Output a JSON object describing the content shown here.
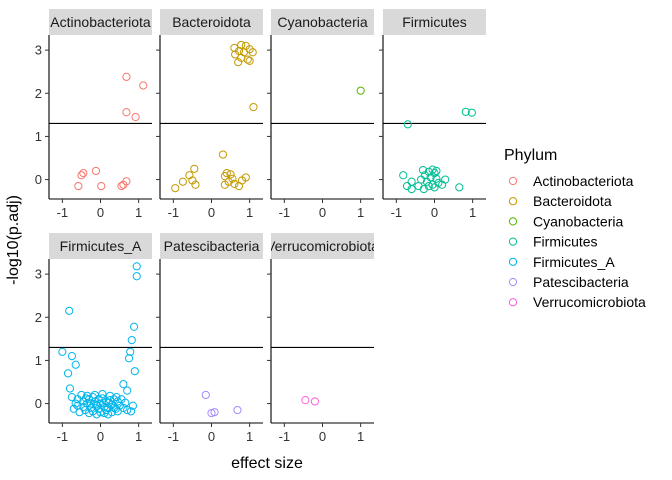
{
  "chart_data": {
    "type": "scatter",
    "xlabel": "effect size",
    "ylabel": "-log10(p.adj)",
    "xlim": [
      -1.35,
      1.35
    ],
    "ylim": [
      -0.45,
      3.35
    ],
    "x_ticks": [
      -1,
      0,
      1
    ],
    "y_ticks": [
      0,
      1,
      2,
      3
    ],
    "threshold_y": 1.3,
    "grid": false,
    "legend": {
      "title": "Phylum",
      "position": "right"
    },
    "colors": {
      "Actinobacteriota": "#F8766D",
      "Bacteroidota": "#C49A00",
      "Cyanobacteria": "#53B400",
      "Firmicutes": "#00C094",
      "Firmicutes_A": "#00B6EB",
      "Patescibacteria": "#A58AFF",
      "Verrucomicrobiota": "#FB61D7"
    },
    "panels": [
      {
        "name": "Actinobacteriota",
        "series": "Actinobacteriota",
        "points": [
          [
            0.68,
            2.38
          ],
          [
            1.12,
            2.18
          ],
          [
            0.68,
            1.56
          ],
          [
            0.92,
            1.45
          ],
          [
            0.68,
            -0.04
          ],
          [
            0.6,
            -0.12
          ],
          [
            0.55,
            -0.15
          ],
          [
            -0.12,
            0.2
          ],
          [
            -0.45,
            0.15
          ],
          [
            -0.5,
            0.1
          ],
          [
            -0.58,
            -0.15
          ],
          [
            0.02,
            -0.15
          ]
        ]
      },
      {
        "name": "Bacteroidota",
        "series": "Bacteroidota",
        "points": [
          [
            0.78,
            3.12
          ],
          [
            0.9,
            3.1
          ],
          [
            0.6,
            3.05
          ],
          [
            1.0,
            3.02
          ],
          [
            0.72,
            2.98
          ],
          [
            0.85,
            2.95
          ],
          [
            1.08,
            2.95
          ],
          [
            0.62,
            2.9
          ],
          [
            0.78,
            2.82
          ],
          [
            0.95,
            2.78
          ],
          [
            1.0,
            2.75
          ],
          [
            0.7,
            2.72
          ],
          [
            1.1,
            1.68
          ],
          [
            0.3,
            0.58
          ],
          [
            -0.45,
            0.25
          ],
          [
            -0.58,
            0.1
          ],
          [
            -0.5,
            -0.02
          ],
          [
            -0.42,
            -0.12
          ],
          [
            -0.75,
            -0.05
          ],
          [
            -0.95,
            -0.2
          ],
          [
            0.4,
            0.15
          ],
          [
            0.35,
            0.08
          ],
          [
            0.5,
            0.12
          ],
          [
            0.55,
            0.02
          ],
          [
            0.45,
            -0.05
          ],
          [
            0.6,
            -0.1
          ],
          [
            0.72,
            -0.15
          ],
          [
            0.8,
            -0.02
          ],
          [
            0.35,
            -0.12
          ],
          [
            0.9,
            0.05
          ]
        ]
      },
      {
        "name": "Cyanobacteria",
        "series": "Cyanobacteria",
        "points": [
          [
            1.0,
            2.06
          ]
        ]
      },
      {
        "name": "Firmicutes",
        "series": "Firmicutes",
        "points": [
          [
            0.82,
            1.57
          ],
          [
            0.98,
            1.55
          ],
          [
            -0.7,
            1.28
          ],
          [
            -0.82,
            0.1
          ],
          [
            -0.3,
            0.22
          ],
          [
            -0.05,
            0.23
          ],
          [
            0.05,
            0.2
          ],
          [
            -0.15,
            0.18
          ],
          [
            0.0,
            0.15
          ],
          [
            -0.25,
            0.1
          ],
          [
            -0.1,
            0.05
          ],
          [
            0.05,
            0.02
          ],
          [
            -0.35,
            0.0
          ],
          [
            -0.6,
            -0.05
          ],
          [
            -0.2,
            -0.05
          ],
          [
            0.1,
            -0.08
          ],
          [
            -0.05,
            -0.12
          ],
          [
            -0.15,
            -0.15
          ],
          [
            0.0,
            -0.18
          ],
          [
            0.2,
            -0.12
          ],
          [
            -0.42,
            -0.15
          ],
          [
            -0.28,
            -0.22
          ],
          [
            -0.72,
            -0.15
          ],
          [
            -0.6,
            -0.22
          ],
          [
            0.65,
            -0.18
          ],
          [
            0.28,
            0.0
          ]
        ]
      },
      {
        "name": "Firmicutes_A",
        "series": "Firmicutes_A",
        "points": [
          [
            0.95,
            3.18
          ],
          [
            0.95,
            2.95
          ],
          [
            -0.82,
            2.15
          ],
          [
            0.88,
            1.78
          ],
          [
            0.82,
            1.47
          ],
          [
            -1.0,
            1.2
          ],
          [
            0.78,
            1.2
          ],
          [
            -0.75,
            1.1
          ],
          [
            0.75,
            1.05
          ],
          [
            -0.65,
            0.9
          ],
          [
            -0.85,
            0.7
          ],
          [
            0.9,
            0.75
          ],
          [
            -0.8,
            0.35
          ],
          [
            0.6,
            0.45
          ],
          [
            0.7,
            0.3
          ],
          [
            -0.75,
            0.15
          ],
          [
            -0.6,
            0.1
          ],
          [
            -0.5,
            0.2
          ],
          [
            -0.45,
            0.05
          ],
          [
            -0.35,
            0.18
          ],
          [
            -0.3,
            0.1
          ],
          [
            -0.25,
            0.0
          ],
          [
            -0.2,
            0.15
          ],
          [
            -0.15,
            0.05
          ],
          [
            -0.1,
            -0.05
          ],
          [
            -0.05,
            0.1
          ],
          [
            0.0,
            0.0
          ],
          [
            0.05,
            0.12
          ],
          [
            0.1,
            -0.08
          ],
          [
            0.15,
            0.05
          ],
          [
            0.2,
            -0.1
          ],
          [
            0.25,
            0.08
          ],
          [
            0.3,
            -0.02
          ],
          [
            0.35,
            0.1
          ],
          [
            0.4,
            -0.12
          ],
          [
            0.45,
            0.05
          ],
          [
            0.5,
            -0.05
          ],
          [
            0.55,
            0.1
          ],
          [
            0.6,
            -0.1
          ],
          [
            0.7,
            -0.15
          ],
          [
            0.8,
            -0.18
          ],
          [
            0.85,
            -0.05
          ],
          [
            -0.7,
            -0.12
          ],
          [
            -0.55,
            -0.2
          ],
          [
            -0.4,
            -0.15
          ],
          [
            -0.3,
            -0.22
          ],
          [
            -0.2,
            -0.18
          ],
          [
            -0.1,
            -0.25
          ],
          [
            0.0,
            -0.2
          ],
          [
            0.1,
            -0.22
          ],
          [
            0.2,
            -0.25
          ],
          [
            0.3,
            -0.2
          ],
          [
            0.45,
            -0.18
          ],
          [
            -0.6,
            -0.05
          ],
          [
            -0.35,
            0.0
          ],
          [
            -0.15,
            0.2
          ],
          [
            0.05,
            0.22
          ],
          [
            0.25,
            0.18
          ],
          [
            -0.25,
            -0.1
          ],
          [
            0.15,
            -0.15
          ],
          [
            -0.45,
            -0.08
          ],
          [
            0.35,
            -0.1
          ],
          [
            -0.65,
            0.0
          ],
          [
            0.65,
            0.02
          ],
          [
            -0.05,
            -0.12
          ],
          [
            0.08,
            0.02
          ],
          [
            -0.12,
            -0.02
          ],
          [
            0.22,
            0.02
          ],
          [
            -0.38,
            0.12
          ],
          [
            0.42,
            0.15
          ]
        ]
      },
      {
        "name": "Patescibacteria",
        "series": "Patescibacteria",
        "points": [
          [
            -0.15,
            0.2
          ],
          [
            0.68,
            -0.15
          ],
          [
            0.08,
            -0.2
          ],
          [
            0.0,
            -0.22
          ]
        ]
      },
      {
        "name": "Verrucomicrobiota",
        "series": "Verrucomicrobiota",
        "points": [
          [
            -0.45,
            0.08
          ],
          [
            -0.2,
            0.05
          ]
        ]
      }
    ]
  },
  "labels": {
    "panel_titles": [
      "Actinobacteriota",
      "Bacteroidota",
      "Cyanobacteria",
      "Firmicutes",
      "Firmicutes_A",
      "Patescibacteria",
      "Verrucomicrobiota"
    ],
    "x_ticks": [
      "-1",
      "0",
      "1"
    ],
    "y_ticks": [
      "0",
      "1",
      "2",
      "3"
    ],
    "xlabel": "effect size",
    "ylabel": "-log10(p.adj)",
    "legend_title": "Phylum",
    "legend_items": [
      "Actinobacteriota",
      "Bacteroidota",
      "Cyanobacteria",
      "Firmicutes",
      "Firmicutes_A",
      "Patescibacteria",
      "Verrucomicrobiota"
    ]
  }
}
